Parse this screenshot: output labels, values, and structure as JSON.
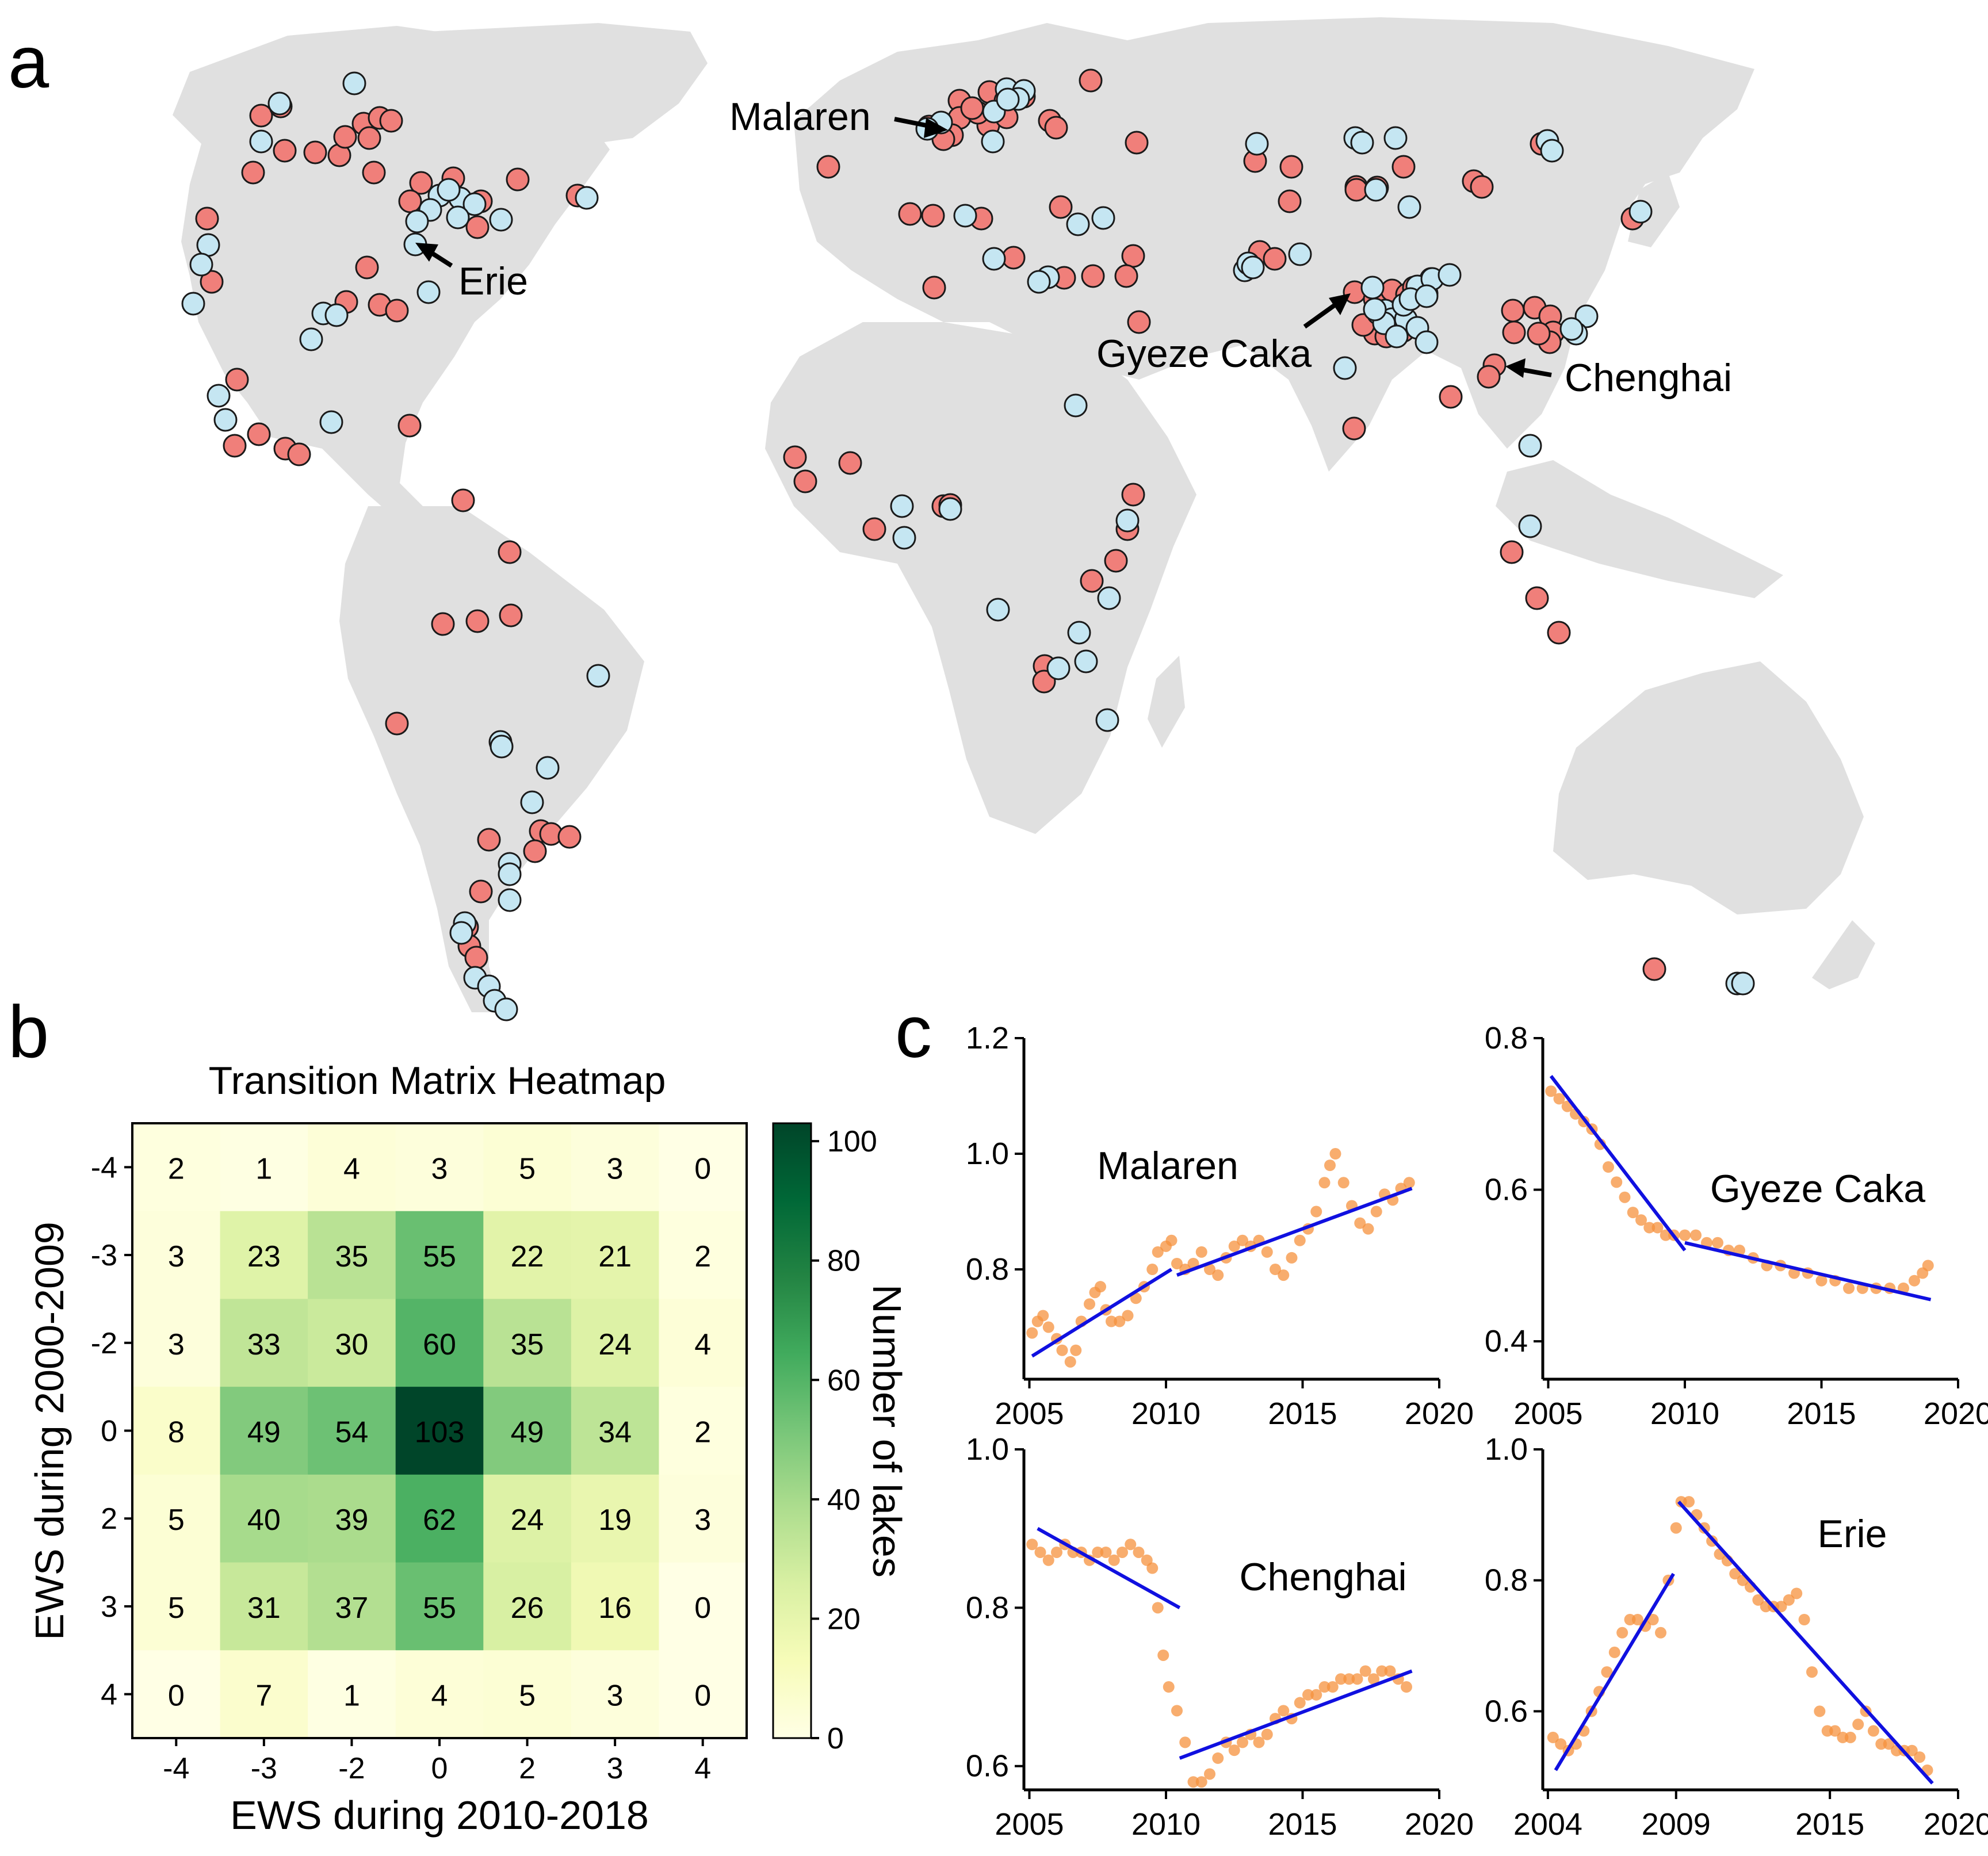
{
  "panels": {
    "a": {
      "label": "a",
      "land_color": "#e0e0e0",
      "marker_colors": {
        "warning": "#f07f7a",
        "no_warning": "#c5e6f2"
      },
      "lake_labels": [
        "Malaren",
        "Erie",
        "Gyeze Caka",
        "Chenghai"
      ]
    },
    "b": {
      "label": "b"
    },
    "c": {
      "label": "c"
    }
  },
  "chart_data": [
    {
      "type": "heatmap",
      "title": "Transition Matrix Heatmap",
      "xlabel": "EWS during 2010-2018",
      "ylabel": "EWS during 2000-2009",
      "x_categories": [
        "-4",
        "-3",
        "-2",
        "0",
        "2",
        "3",
        "4"
      ],
      "y_categories": [
        "-4",
        "-3",
        "-2",
        "0",
        "2",
        "3",
        "4"
      ],
      "values": [
        [
          2,
          1,
          4,
          3,
          5,
          3,
          0
        ],
        [
          3,
          23,
          35,
          55,
          22,
          21,
          2
        ],
        [
          3,
          33,
          30,
          60,
          35,
          24,
          4
        ],
        [
          8,
          49,
          54,
          103,
          49,
          34,
          2
        ],
        [
          5,
          40,
          39,
          62,
          24,
          19,
          3
        ],
        [
          5,
          31,
          37,
          55,
          26,
          16,
          0
        ],
        [
          0,
          7,
          1,
          4,
          5,
          3,
          0
        ]
      ],
      "colorbar": {
        "label": "Number of lakes",
        "range": [
          0,
          103
        ],
        "ticks": [
          "0",
          "20",
          "40",
          "60",
          "80",
          "100"
        ],
        "colormap": "Greens"
      }
    },
    {
      "type": "scatter",
      "title": "Malaren",
      "xlim": [
        2004.8,
        2020
      ],
      "ylim": [
        0.61,
        1.2
      ],
      "xticks": [
        "2005",
        "2010",
        "2015",
        "2020"
      ],
      "yticks": [
        "0.8",
        "1.0",
        "1.2"
      ],
      "points": [
        [
          2005.1,
          0.69
        ],
        [
          2005.3,
          0.71
        ],
        [
          2005.5,
          0.72
        ],
        [
          2005.7,
          0.7
        ],
        [
          2006.0,
          0.68
        ],
        [
          2006.2,
          0.66
        ],
        [
          2006.5,
          0.64
        ],
        [
          2006.7,
          0.66
        ],
        [
          2006.9,
          0.71
        ],
        [
          2007.2,
          0.74
        ],
        [
          2007.4,
          0.76
        ],
        [
          2007.6,
          0.77
        ],
        [
          2007.8,
          0.73
        ],
        [
          2008.0,
          0.71
        ],
        [
          2008.3,
          0.71
        ],
        [
          2008.6,
          0.72
        ],
        [
          2008.9,
          0.75
        ],
        [
          2009.2,
          0.77
        ],
        [
          2009.5,
          0.8
        ],
        [
          2009.7,
          0.83
        ],
        [
          2010.0,
          0.84
        ],
        [
          2010.2,
          0.85
        ],
        [
          2010.4,
          0.81
        ],
        [
          2010.7,
          0.8
        ],
        [
          2011.0,
          0.81
        ],
        [
          2011.3,
          0.83
        ],
        [
          2011.6,
          0.8
        ],
        [
          2011.9,
          0.79
        ],
        [
          2012.2,
          0.82
        ],
        [
          2012.5,
          0.84
        ],
        [
          2012.8,
          0.85
        ],
        [
          2013.1,
          0.84
        ],
        [
          2013.4,
          0.85
        ],
        [
          2013.7,
          0.83
        ],
        [
          2014.0,
          0.8
        ],
        [
          2014.3,
          0.79
        ],
        [
          2014.6,
          0.82
        ],
        [
          2014.9,
          0.85
        ],
        [
          2015.2,
          0.87
        ],
        [
          2015.5,
          0.9
        ],
        [
          2015.8,
          0.95
        ],
        [
          2016.0,
          0.98
        ],
        [
          2016.2,
          1.0
        ],
        [
          2016.5,
          0.95
        ],
        [
          2016.8,
          0.91
        ],
        [
          2017.1,
          0.88
        ],
        [
          2017.4,
          0.87
        ],
        [
          2017.7,
          0.9
        ],
        [
          2018.0,
          0.93
        ],
        [
          2018.3,
          0.92
        ],
        [
          2018.6,
          0.94
        ],
        [
          2018.9,
          0.95
        ]
      ],
      "fit_lines": [
        [
          [
            2005.1,
            0.65
          ],
          [
            2010.2,
            0.8
          ]
        ],
        [
          [
            2010.4,
            0.79
          ],
          [
            2019.0,
            0.94
          ]
        ]
      ]
    },
    {
      "type": "scatter",
      "title": "Gyeze Caka",
      "xlim": [
        2004.8,
        2020
      ],
      "ylim": [
        0.35,
        0.8
      ],
      "xticks": [
        "2005",
        "2010",
        "2015",
        "2020"
      ],
      "yticks": [
        "0.4",
        "0.6",
        "0.8"
      ],
      "points": [
        [
          2005.1,
          0.73
        ],
        [
          2005.4,
          0.72
        ],
        [
          2005.7,
          0.71
        ],
        [
          2006.0,
          0.7
        ],
        [
          2006.3,
          0.69
        ],
        [
          2006.6,
          0.68
        ],
        [
          2006.9,
          0.66
        ],
        [
          2007.2,
          0.63
        ],
        [
          2007.5,
          0.61
        ],
        [
          2007.8,
          0.59
        ],
        [
          2008.1,
          0.57
        ],
        [
          2008.4,
          0.56
        ],
        [
          2008.7,
          0.55
        ],
        [
          2009.0,
          0.55
        ],
        [
          2009.3,
          0.54
        ],
        [
          2009.6,
          0.54
        ],
        [
          2010.0,
          0.54
        ],
        [
          2010.4,
          0.54
        ],
        [
          2010.8,
          0.53
        ],
        [
          2011.2,
          0.53
        ],
        [
          2011.6,
          0.52
        ],
        [
          2012.0,
          0.52
        ],
        [
          2012.5,
          0.51
        ],
        [
          2013.0,
          0.5
        ],
        [
          2013.5,
          0.5
        ],
        [
          2014.0,
          0.49
        ],
        [
          2014.5,
          0.49
        ],
        [
          2015.0,
          0.48
        ],
        [
          2015.5,
          0.48
        ],
        [
          2016.0,
          0.47
        ],
        [
          2016.5,
          0.47
        ],
        [
          2017.0,
          0.47
        ],
        [
          2017.5,
          0.47
        ],
        [
          2018.0,
          0.47
        ],
        [
          2018.4,
          0.48
        ],
        [
          2018.7,
          0.49
        ],
        [
          2018.9,
          0.5
        ]
      ],
      "fit_lines": [
        [
          [
            2005.1,
            0.75
          ],
          [
            2010.0,
            0.52
          ]
        ],
        [
          [
            2010.0,
            0.53
          ],
          [
            2019.0,
            0.455
          ]
        ]
      ]
    },
    {
      "type": "scatter",
      "title": "Chenghai",
      "xlim": [
        2004.8,
        2020
      ],
      "ylim": [
        0.57,
        1.0
      ],
      "xticks": [
        "2005",
        "2010",
        "2015",
        "2020"
      ],
      "yticks": [
        "0.6",
        "0.8",
        "1.0"
      ],
      "points": [
        [
          2005.1,
          0.88
        ],
        [
          2005.4,
          0.87
        ],
        [
          2005.7,
          0.86
        ],
        [
          2006.0,
          0.87
        ],
        [
          2006.3,
          0.88
        ],
        [
          2006.6,
          0.87
        ],
        [
          2006.9,
          0.87
        ],
        [
          2007.2,
          0.86
        ],
        [
          2007.5,
          0.87
        ],
        [
          2007.8,
          0.87
        ],
        [
          2008.1,
          0.86
        ],
        [
          2008.4,
          0.87
        ],
        [
          2008.7,
          0.88
        ],
        [
          2009.0,
          0.87
        ],
        [
          2009.3,
          0.86
        ],
        [
          2009.5,
          0.85
        ],
        [
          2009.7,
          0.8
        ],
        [
          2009.9,
          0.74
        ],
        [
          2010.1,
          0.7
        ],
        [
          2010.4,
          0.67
        ],
        [
          2010.7,
          0.63
        ],
        [
          2011.0,
          0.58
        ],
        [
          2011.3,
          0.58
        ],
        [
          2011.6,
          0.59
        ],
        [
          2011.9,
          0.61
        ],
        [
          2012.2,
          0.63
        ],
        [
          2012.5,
          0.62
        ],
        [
          2012.8,
          0.63
        ],
        [
          2013.1,
          0.64
        ],
        [
          2013.4,
          0.63
        ],
        [
          2013.7,
          0.64
        ],
        [
          2014.0,
          0.66
        ],
        [
          2014.3,
          0.67
        ],
        [
          2014.6,
          0.66
        ],
        [
          2014.9,
          0.68
        ],
        [
          2015.2,
          0.69
        ],
        [
          2015.5,
          0.69
        ],
        [
          2015.8,
          0.7
        ],
        [
          2016.1,
          0.7
        ],
        [
          2016.4,
          0.71
        ],
        [
          2016.7,
          0.71
        ],
        [
          2017.0,
          0.71
        ],
        [
          2017.3,
          0.72
        ],
        [
          2017.6,
          0.71
        ],
        [
          2017.9,
          0.72
        ],
        [
          2018.2,
          0.72
        ],
        [
          2018.5,
          0.71
        ],
        [
          2018.8,
          0.7
        ]
      ],
      "fit_lines": [
        [
          [
            2005.3,
            0.9
          ],
          [
            2010.5,
            0.8
          ]
        ],
        [
          [
            2010.5,
            0.61
          ],
          [
            2019.0,
            0.72
          ]
        ]
      ]
    },
    {
      "type": "scatter",
      "title": "Erie",
      "xlim": [
        2003.8,
        2020
      ],
      "ylim": [
        0.48,
        1.0
      ],
      "xticks": [
        "2004",
        "2009",
        "2015",
        "2020"
      ],
      "yticks": [
        "0.6",
        "0.8",
        "1.0"
      ],
      "points": [
        [
          2004.2,
          0.56
        ],
        [
          2004.5,
          0.55
        ],
        [
          2004.8,
          0.54
        ],
        [
          2005.1,
          0.55
        ],
        [
          2005.4,
          0.57
        ],
        [
          2005.7,
          0.6
        ],
        [
          2006.0,
          0.63
        ],
        [
          2006.3,
          0.66
        ],
        [
          2006.6,
          0.69
        ],
        [
          2006.9,
          0.72
        ],
        [
          2007.2,
          0.74
        ],
        [
          2007.5,
          0.74
        ],
        [
          2007.8,
          0.73
        ],
        [
          2008.1,
          0.74
        ],
        [
          2008.4,
          0.72
        ],
        [
          2008.7,
          0.8
        ],
        [
          2009.0,
          0.88
        ],
        [
          2009.2,
          0.92
        ],
        [
          2009.5,
          0.92
        ],
        [
          2009.8,
          0.9
        ],
        [
          2010.1,
          0.88
        ],
        [
          2010.4,
          0.86
        ],
        [
          2010.7,
          0.84
        ],
        [
          2011.0,
          0.83
        ],
        [
          2011.3,
          0.81
        ],
        [
          2011.6,
          0.8
        ],
        [
          2011.9,
          0.79
        ],
        [
          2012.2,
          0.77
        ],
        [
          2012.5,
          0.76
        ],
        [
          2012.8,
          0.76
        ],
        [
          2013.1,
          0.76
        ],
        [
          2013.4,
          0.77
        ],
        [
          2013.7,
          0.78
        ],
        [
          2014.0,
          0.74
        ],
        [
          2014.3,
          0.66
        ],
        [
          2014.6,
          0.6
        ],
        [
          2014.9,
          0.57
        ],
        [
          2015.2,
          0.57
        ],
        [
          2015.5,
          0.56
        ],
        [
          2015.8,
          0.56
        ],
        [
          2016.1,
          0.58
        ],
        [
          2016.4,
          0.6
        ],
        [
          2016.7,
          0.57
        ],
        [
          2017.0,
          0.55
        ],
        [
          2017.3,
          0.55
        ],
        [
          2017.6,
          0.54
        ],
        [
          2017.9,
          0.54
        ],
        [
          2018.2,
          0.54
        ],
        [
          2018.5,
          0.53
        ],
        [
          2018.8,
          0.51
        ]
      ],
      "fit_lines": [
        [
          [
            2004.3,
            0.51
          ],
          [
            2008.9,
            0.81
          ]
        ],
        [
          [
            2009.1,
            0.92
          ],
          [
            2019.0,
            0.49
          ]
        ]
      ]
    }
  ]
}
